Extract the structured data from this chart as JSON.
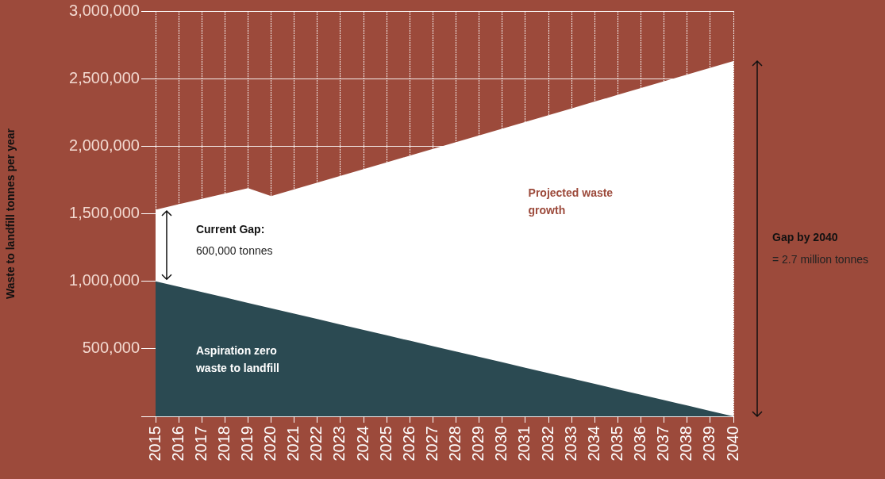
{
  "chart_data": {
    "type": "area",
    "ylabel": "Waste to landfill tonnes per year",
    "categories": [
      "2015",
      "2016",
      "2017",
      "2018",
      "2019",
      "2020",
      "2021",
      "2022",
      "2023",
      "2024",
      "2025",
      "2026",
      "2027",
      "2028",
      "2029",
      "2030",
      "2031",
      "2032",
      "2033",
      "2034",
      "2035",
      "2036",
      "2037",
      "2038",
      "2039",
      "2040"
    ],
    "series": [
      {
        "name": "Projected waste growth",
        "color": "#ffffff",
        "values": [
          1530000,
          1570000,
          1610000,
          1650000,
          1690000,
          1630000,
          1680000,
          1730000,
          1780000,
          1830000,
          1880000,
          1930000,
          1980000,
          2030000,
          2080000,
          2130000,
          2180000,
          2230000,
          2280000,
          2330000,
          2380000,
          2430000,
          2480000,
          2530000,
          2580000,
          2630000
        ]
      },
      {
        "name": "Aspiration zero waste to landfill",
        "color": "#2b4a52",
        "values": [
          1000000,
          960000,
          920000,
          880000,
          840000,
          800000,
          760000,
          720000,
          680000,
          640000,
          600000,
          560000,
          520000,
          480000,
          440000,
          400000,
          360000,
          320000,
          280000,
          240000,
          200000,
          160000,
          120000,
          80000,
          40000,
          0
        ]
      }
    ],
    "ylim": [
      0,
      3000000
    ],
    "yticks": [
      {
        "value": 0,
        "label": null
      },
      {
        "value": 500000,
        "label": "500,000"
      },
      {
        "value": 1000000,
        "label": "1,000,000"
      },
      {
        "value": 1500000,
        "label": "1,500,000"
      },
      {
        "value": 2000000,
        "label": "2,000,000"
      },
      {
        "value": 2500000,
        "label": "2,500,000"
      },
      {
        "value": 3000000,
        "label": "3,000,000"
      }
    ],
    "grid": true,
    "legend": false,
    "annotations": [
      "Current Gap:",
      "600,000 tonnes",
      "Gap by 2040",
      "= 2.7 million tonnes"
    ]
  }
}
